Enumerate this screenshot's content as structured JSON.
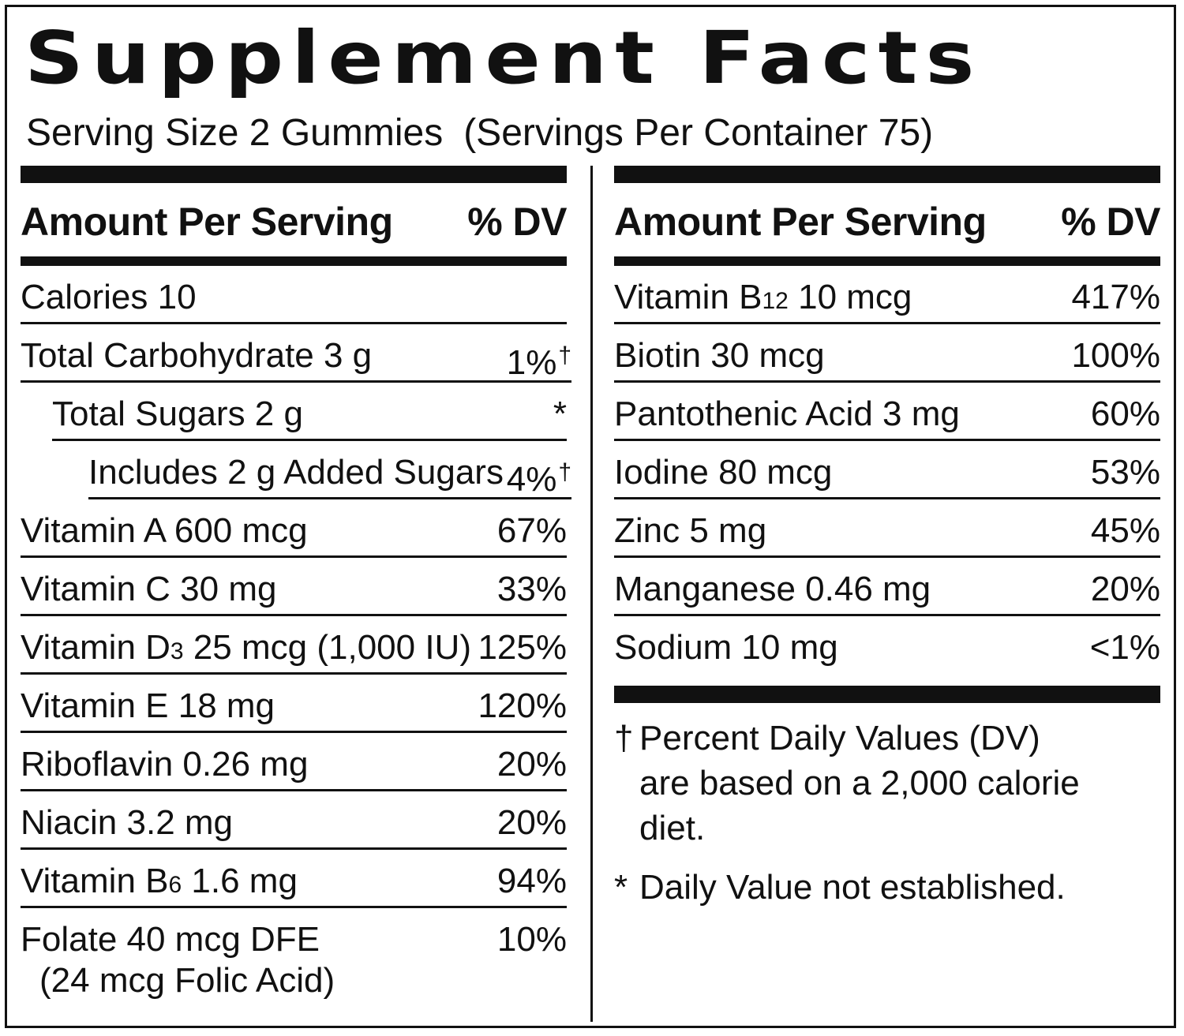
{
  "title": "Supplement Facts",
  "serving": {
    "size": "Serving Size 2 Gummies",
    "per_container": "(Servings Per Container 75)"
  },
  "header": {
    "amount": "Amount Per Serving",
    "dv": "% DV"
  },
  "left_rows": [
    {
      "name": "Calories 10",
      "dv": ""
    },
    {
      "name": "Total Carbohydrate 3 g",
      "dv": "1%",
      "mark": "†"
    },
    {
      "name": "Total Sugars 2 g",
      "dv": "*"
    },
    {
      "name": "Includes 2 g Added Sugars",
      "dv": "4%",
      "mark": "†"
    },
    {
      "name": "Vitamin A 600 mcg",
      "dv": "67%"
    },
    {
      "name": "Vitamin C 30 mg",
      "dv": "33%"
    },
    {
      "name_a": "Vitamin D",
      "sub": "3",
      "name_b": " 25 mcg (1,000 IU)",
      "dv": "125%"
    },
    {
      "name": "Vitamin E 18 mg",
      "dv": "120%"
    },
    {
      "name": "Riboflavin 0.26 mg",
      "dv": "20%"
    },
    {
      "name": "Niacin 3.2 mg",
      "dv": "20%"
    },
    {
      "name_a": "Vitamin B",
      "sub": "6",
      "name_b": " 1.6 mg",
      "dv": "94%"
    },
    {
      "name": "Folate 40 mcg DFE",
      "name2": "(24 mcg Folic Acid)",
      "dv": "10%"
    }
  ],
  "right_rows": [
    {
      "name_a": "Vitamin B",
      "sub": "12",
      "name_b": " 10 mcg",
      "dv": "417%"
    },
    {
      "name": "Biotin 30 mcg",
      "dv": "100%"
    },
    {
      "name": "Pantothenic Acid 3 mg",
      "dv": "60%"
    },
    {
      "name": "Iodine 80 mcg",
      "dv": "53%"
    },
    {
      "name": "Zinc 5 mg",
      "dv": "45%"
    },
    {
      "name": "Manganese 0.46 mg",
      "dv": "20%"
    },
    {
      "name": "Sodium 10 mg",
      "dv": "<1%"
    }
  ],
  "footnotes": [
    {
      "symbol": "†",
      "text": "Percent Daily Values (DV) are based on a 2,000 calorie diet."
    },
    {
      "symbol": "*",
      "text": "Daily Value not established."
    }
  ]
}
